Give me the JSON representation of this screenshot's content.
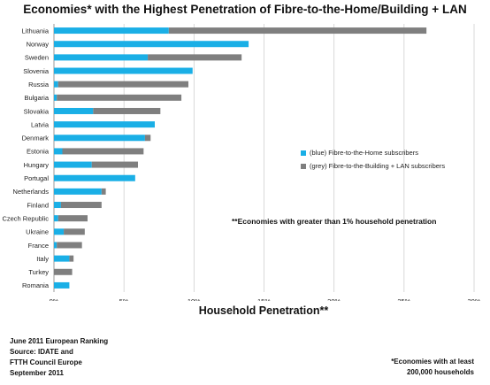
{
  "chart_data": {
    "type": "bar",
    "orientation": "horizontal",
    "stacked": true,
    "title": "Economies* with the Highest Penetration of Fibre-to-the-Home/Building + LAN",
    "xlabel": "Household Penetration**",
    "xlim": [
      0,
      30
    ],
    "xticks": [
      "0%",
      "5%",
      "10%",
      "15%",
      "20%",
      "25%",
      "30%"
    ],
    "grid": "vertical",
    "categories": [
      "Lithuania",
      "Norway",
      "Sweden",
      "Slovenia",
      "Russia",
      "Bulgaria",
      "Slovakia",
      "Latvia",
      "Denmark",
      "Estonia",
      "Hungary",
      "Portugal",
      "Netherlands",
      "Finland",
      "Czech Republic",
      "Ukraine",
      "France",
      "Italy",
      "Turkey",
      "Romania"
    ],
    "series": [
      {
        "name": "(blue) Fibre-to-the-Home subscribers",
        "color": "#1aafe6",
        "values": [
          8.2,
          13.9,
          6.7,
          9.9,
          0.3,
          0.2,
          2.8,
          7.2,
          6.5,
          0.6,
          2.7,
          5.8,
          3.4,
          0.5,
          0.3,
          0.7,
          0.2,
          1.1,
          0.0,
          1.1
        ]
      },
      {
        "name": "(grey) Fibre-to-the-Building + LAN subscribers",
        "color": "#7f7f7f",
        "values": [
          18.4,
          0.0,
          6.7,
          0.0,
          9.3,
          8.9,
          4.8,
          0.0,
          0.4,
          5.8,
          3.3,
          0.0,
          0.3,
          2.9,
          2.1,
          1.5,
          1.8,
          0.3,
          1.3,
          0.0
        ]
      }
    ],
    "legend": "right-middle",
    "annotation": "**Economies with greater than 1% household penetration"
  },
  "footnotes": {
    "left": [
      "June 2011 European Ranking",
      "Source: IDATE and",
      "FTTH Council Europe",
      "September 2011"
    ],
    "right": [
      "*Economies with at least",
      "200,000 households"
    ]
  }
}
